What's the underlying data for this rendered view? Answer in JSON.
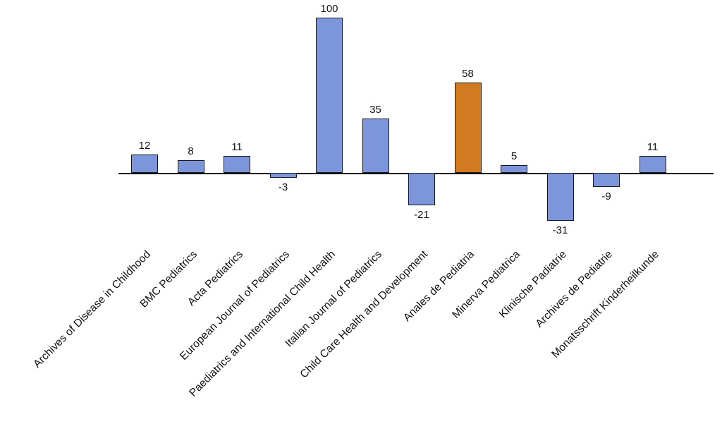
{
  "chart_data": {
    "type": "bar",
    "title": "",
    "xlabel": "",
    "ylabel": "",
    "ylim": [
      -40,
      105
    ],
    "grid": false,
    "legend": false,
    "categories": [
      "Archives of Disease in Childhood",
      "BMC Pediatrics",
      "Acta Pediatrics",
      "European Journal of Pediatrics",
      "Paediatrics and International Child Health",
      "Italian Journal of Pediatrics",
      "Child Care Health and Development",
      "Anales de Pediatria",
      "Minerva Pediatrica",
      "Klinische Padiatrie",
      "Archives de Pediatrie",
      "Monatsschrift Kinderheilkunde"
    ],
    "values": [
      12,
      8,
      11,
      -3,
      100,
      35,
      -21,
      58,
      5,
      -31,
      -9,
      11
    ],
    "highlight_index": 7,
    "colors": {
      "bar_fill": "#7D96DB",
      "highlight_fill": "#D07A21",
      "bar_border": "#1a1a1a",
      "axis": "#000000",
      "text": "#111111"
    }
  }
}
